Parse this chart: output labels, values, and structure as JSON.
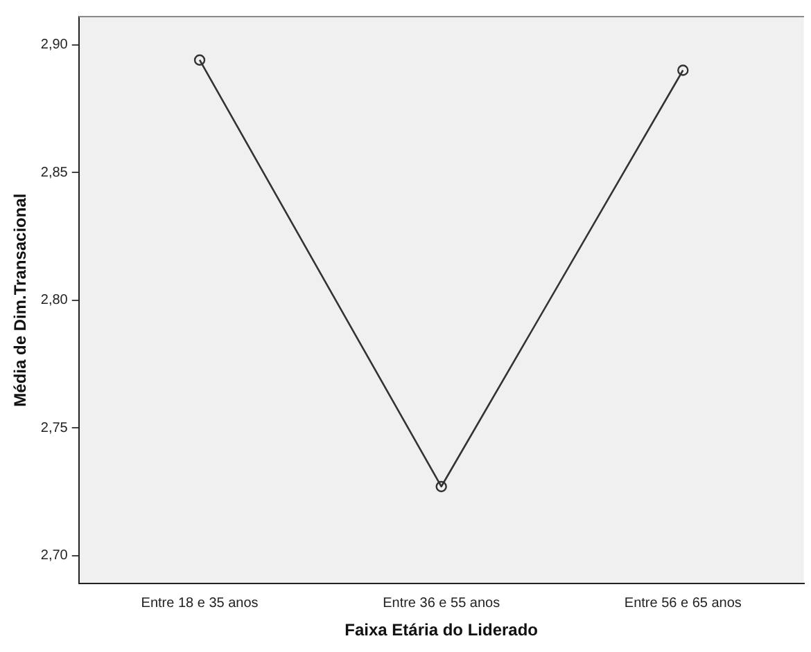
{
  "chart_data": {
    "type": "line",
    "xlabel": "Faixa Etária do Liderado",
    "ylabel": "Média de Dim.Transacional",
    "categories": [
      "Entre 18 e 35 anos",
      "Entre 36 e 55 anos",
      "Entre 56 e 65 anos"
    ],
    "series": [
      {
        "color": "#333333",
        "values": [
          2.894,
          2.727,
          2.89
        ]
      }
    ],
    "ylim": [
      2.689,
      2.911
    ],
    "yticks": [
      {
        "value": 2.7,
        "label": "2,70"
      },
      {
        "value": 2.75,
        "label": "2,75"
      },
      {
        "value": 2.8,
        "label": "2,80"
      },
      {
        "value": 2.85,
        "label": "2,85"
      },
      {
        "value": 2.9,
        "label": "2,90"
      }
    ],
    "grid": false,
    "legend": false,
    "marker": "circle",
    "line_style": "solid"
  }
}
